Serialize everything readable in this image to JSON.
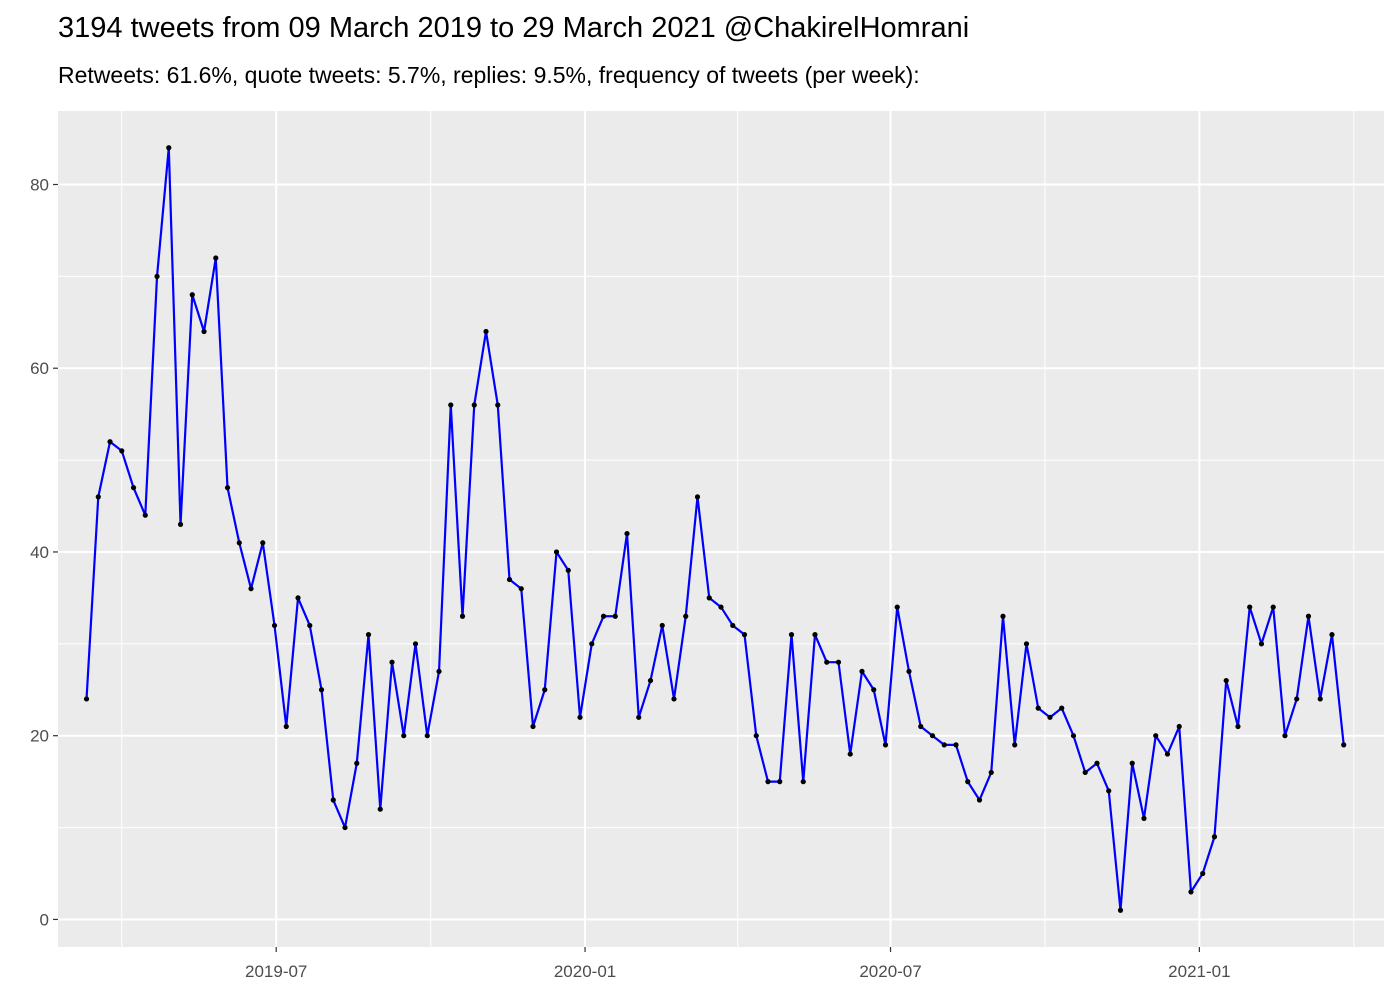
{
  "chart_data": {
    "type": "line",
    "title": "3194 tweets from 09 March 2019 to 29 March 2021 @ChakirelHomrani",
    "subtitle": "Retweets: 61.6%, quote tweets: 5.7%, replies: 9.5%, frequency of tweets (per week):",
    "xlabel": "",
    "ylabel": "",
    "ylim": [
      -3,
      88
    ],
    "xlim": [
      "2019-02-21",
      "2021-04-21"
    ],
    "x_ticks": [
      "2019-07-01",
      "2020-01-01",
      "2020-07-01",
      "2021-01-01"
    ],
    "x_tick_labels": [
      "2019-07",
      "2020-01",
      "2020-07",
      "2021-01"
    ],
    "y_ticks": [
      0,
      20,
      40,
      60,
      80
    ],
    "y_tick_labels": [
      "0",
      "20",
      "40",
      "60",
      "80"
    ],
    "grid": true,
    "line_color": "#0000ff",
    "point_color": "#000000",
    "panel_background": "#ebebeb",
    "series": [
      {
        "x": [
          "2019-03-10",
          "2019-03-17",
          "2019-03-24",
          "2019-03-31",
          "2019-04-07",
          "2019-04-14",
          "2019-04-21",
          "2019-04-28",
          "2019-05-05",
          "2019-05-12",
          "2019-05-19",
          "2019-05-26",
          "2019-06-02",
          "2019-06-09",
          "2019-06-16",
          "2019-06-23",
          "2019-06-30",
          "2019-07-07",
          "2019-07-14",
          "2019-07-21",
          "2019-07-28",
          "2019-08-04",
          "2019-08-11",
          "2019-08-18",
          "2019-08-25",
          "2019-09-01",
          "2019-09-08",
          "2019-09-15",
          "2019-09-22",
          "2019-09-29",
          "2019-10-06",
          "2019-10-13",
          "2019-10-20",
          "2019-10-27",
          "2019-11-03",
          "2019-11-10",
          "2019-11-17",
          "2019-11-24",
          "2019-12-01",
          "2019-12-08",
          "2019-12-15",
          "2019-12-22",
          "2019-12-29",
          "2020-01-05",
          "2020-01-12",
          "2020-01-19",
          "2020-01-26",
          "2020-02-02",
          "2020-02-09",
          "2020-02-16",
          "2020-02-23",
          "2020-03-01",
          "2020-03-08",
          "2020-03-15",
          "2020-03-22",
          "2020-03-29",
          "2020-04-05",
          "2020-04-12",
          "2020-04-19",
          "2020-04-26",
          "2020-05-03",
          "2020-05-10",
          "2020-05-17",
          "2020-05-24",
          "2020-05-31",
          "2020-06-07",
          "2020-06-14",
          "2020-06-21",
          "2020-06-28",
          "2020-07-05",
          "2020-07-12",
          "2020-07-19",
          "2020-07-26",
          "2020-08-02",
          "2020-08-09",
          "2020-08-16",
          "2020-08-23",
          "2020-08-30",
          "2020-09-06",
          "2020-09-13",
          "2020-09-20",
          "2020-09-27",
          "2020-10-04",
          "2020-10-11",
          "2020-10-18",
          "2020-10-25",
          "2020-11-01",
          "2020-11-08",
          "2020-11-15",
          "2020-11-22",
          "2020-11-29",
          "2020-12-06",
          "2020-12-13",
          "2020-12-20",
          "2020-12-27",
          "2021-01-03",
          "2021-01-10",
          "2021-01-17",
          "2021-01-24",
          "2021-01-31",
          "2021-02-07",
          "2021-02-14",
          "2021-02-21",
          "2021-02-28",
          "2021-03-07",
          "2021-03-14",
          "2021-03-21",
          "2021-03-28"
        ],
        "values": [
          24,
          46,
          52,
          51,
          47,
          44,
          70,
          84,
          43,
          68,
          64,
          72,
          47,
          41,
          36,
          41,
          32,
          21,
          35,
          32,
          25,
          13,
          10,
          17,
          31,
          12,
          28,
          20,
          30,
          20,
          27,
          56,
          33,
          56,
          64,
          56,
          37,
          36,
          21,
          25,
          40,
          38,
          22,
          30,
          33,
          33,
          42,
          22,
          26,
          32,
          24,
          33,
          46,
          35,
          34,
          32,
          31,
          20,
          15,
          15,
          31,
          15,
          31,
          28,
          28,
          18,
          27,
          25,
          19,
          34,
          27,
          21,
          20,
          19,
          19,
          15,
          13,
          16,
          33,
          19,
          30,
          23,
          22,
          23,
          20,
          16,
          17,
          14,
          1,
          17,
          11,
          20,
          18,
          21,
          3,
          5,
          9,
          26,
          21,
          34,
          30,
          34,
          20,
          24,
          33,
          24,
          31,
          19
        ]
      }
    ]
  }
}
